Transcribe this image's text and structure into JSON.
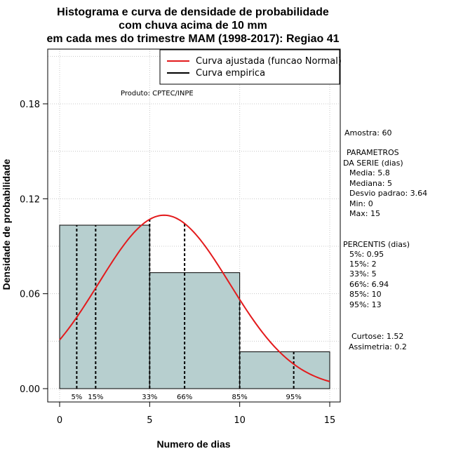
{
  "chart_data": {
    "type": "histogram",
    "title_lines": [
      "Histograma e curva de densidade de probabilidade",
      "com chuva acima de 10 mm",
      "em cada mes do trimestre MAM (1998-2017): Regiao 41"
    ],
    "xlabel": "Numero de dias",
    "ylabel": "Densidade de probabilidade",
    "xlim": [
      -1,
      15.5
    ],
    "ylim": [
      -0.005,
      0.21
    ],
    "x_ticks": [
      0,
      5,
      10,
      15
    ],
    "y_ticks": [
      0.0,
      0.06,
      0.12,
      0.18
    ],
    "y_tick_labels": [
      "0.00",
      "0.06",
      "0.12",
      "0.18"
    ],
    "grid": true,
    "bar_color": "#b7cfcf",
    "curve_color": "#e31a1c",
    "bins": [
      {
        "start": 0,
        "end": 5,
        "density": 0.1033
      },
      {
        "start": 5,
        "end": 10,
        "density": 0.0733
      },
      {
        "start": 10,
        "end": 15,
        "density": 0.0233
      }
    ],
    "normal_fit": {
      "mean": 5.8,
      "sd": 3.64
    },
    "percentiles": [
      {
        "label": "5%",
        "value": 0.95
      },
      {
        "label": "15%",
        "value": 2
      },
      {
        "label": "33%",
        "value": 5
      },
      {
        "label": "66%",
        "value": 6.94
      },
      {
        "label": "85%",
        "value": 10
      },
      {
        "label": "95%",
        "value": 13
      }
    ],
    "legend": {
      "position": "top-right",
      "entries": [
        {
          "label": "Curva ajustada (funcao Normal)",
          "color": "#e31a1c"
        },
        {
          "label": "Curva empirica",
          "color": "#000000"
        }
      ]
    },
    "annotation": "Produto: CPTEC/INPE"
  },
  "stats_panel": {
    "amostra": "Amostra: 60",
    "param_header_1": "PARAMETROS",
    "param_header_2": "DA SERIE (dias)",
    "media": "Media: 5.8",
    "mediana": "Mediana: 5",
    "desvio": "Desvio padrao: 3.64",
    "min": "Min: 0",
    "max": "Max: 15",
    "perc_header": "PERCENTIS (dias)",
    "p5": "5%: 0.95",
    "p15": "15%: 2",
    "p33": "33%: 5",
    "p66": "66%: 6.94",
    "p85": "85%: 10",
    "p95": "95%: 13",
    "curtose": "Curtose: 1.52",
    "assimetria": "Assimetria: 0.2"
  }
}
